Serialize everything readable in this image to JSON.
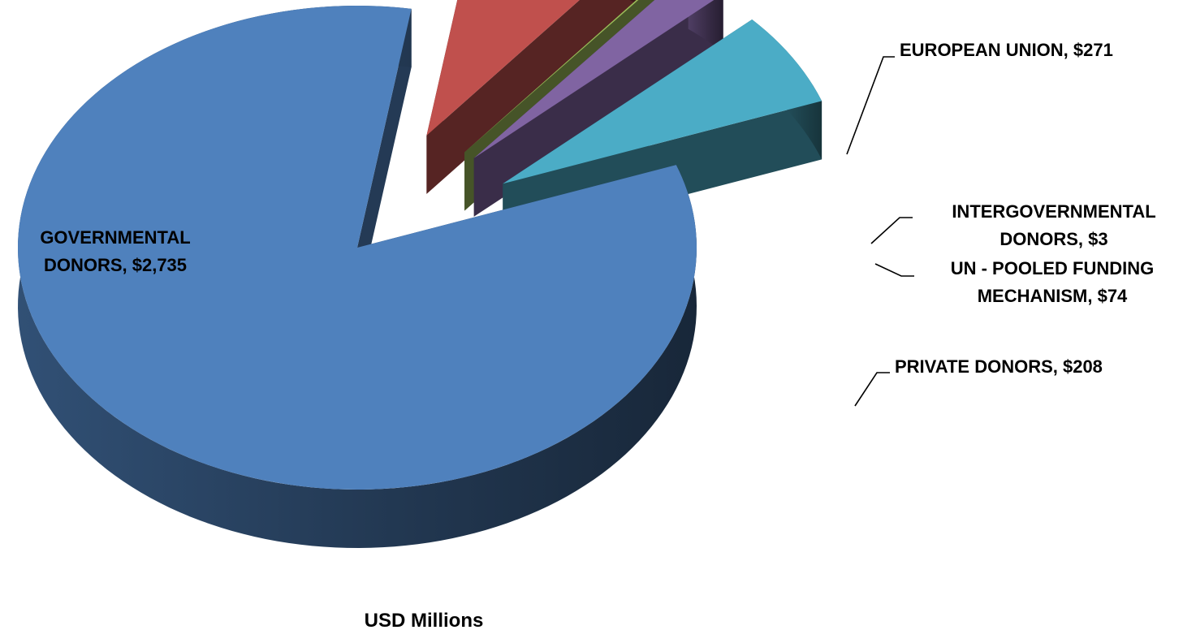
{
  "chart_data": {
    "type": "pie",
    "title": "",
    "caption": "USD Millions",
    "slices": [
      {
        "name": "GOVERNMENTAL DONORS",
        "value": 2735,
        "label_lines": [
          "GOVERNMENTAL",
          "DONORS, $2,735"
        ],
        "color": "#4F81BD"
      },
      {
        "name": "EUROPEAN UNION",
        "value": 271,
        "label_lines": [
          "EUROPEAN UNION, $271"
        ],
        "color": "#C0504D"
      },
      {
        "name": "INTERGOVERNMENTAL DONORS",
        "value": 3,
        "label_lines": [
          "INTERGOVERNMENTAL",
          "DONORS, $3"
        ],
        "color": "#9BBB59"
      },
      {
        "name": "UN - POOLED FUNDING MECHANISM",
        "value": 74,
        "label_lines": [
          "UN - POOLED FUNDING",
          "MECHANISM, $74"
        ],
        "color": "#8064A2"
      },
      {
        "name": "PRIVATE DONORS",
        "value": 208,
        "label_lines": [
          "PRIVATE DONORS, $208"
        ],
        "color": "#4BACC6"
      }
    ],
    "legend": "none",
    "style": "3d-exploded"
  }
}
